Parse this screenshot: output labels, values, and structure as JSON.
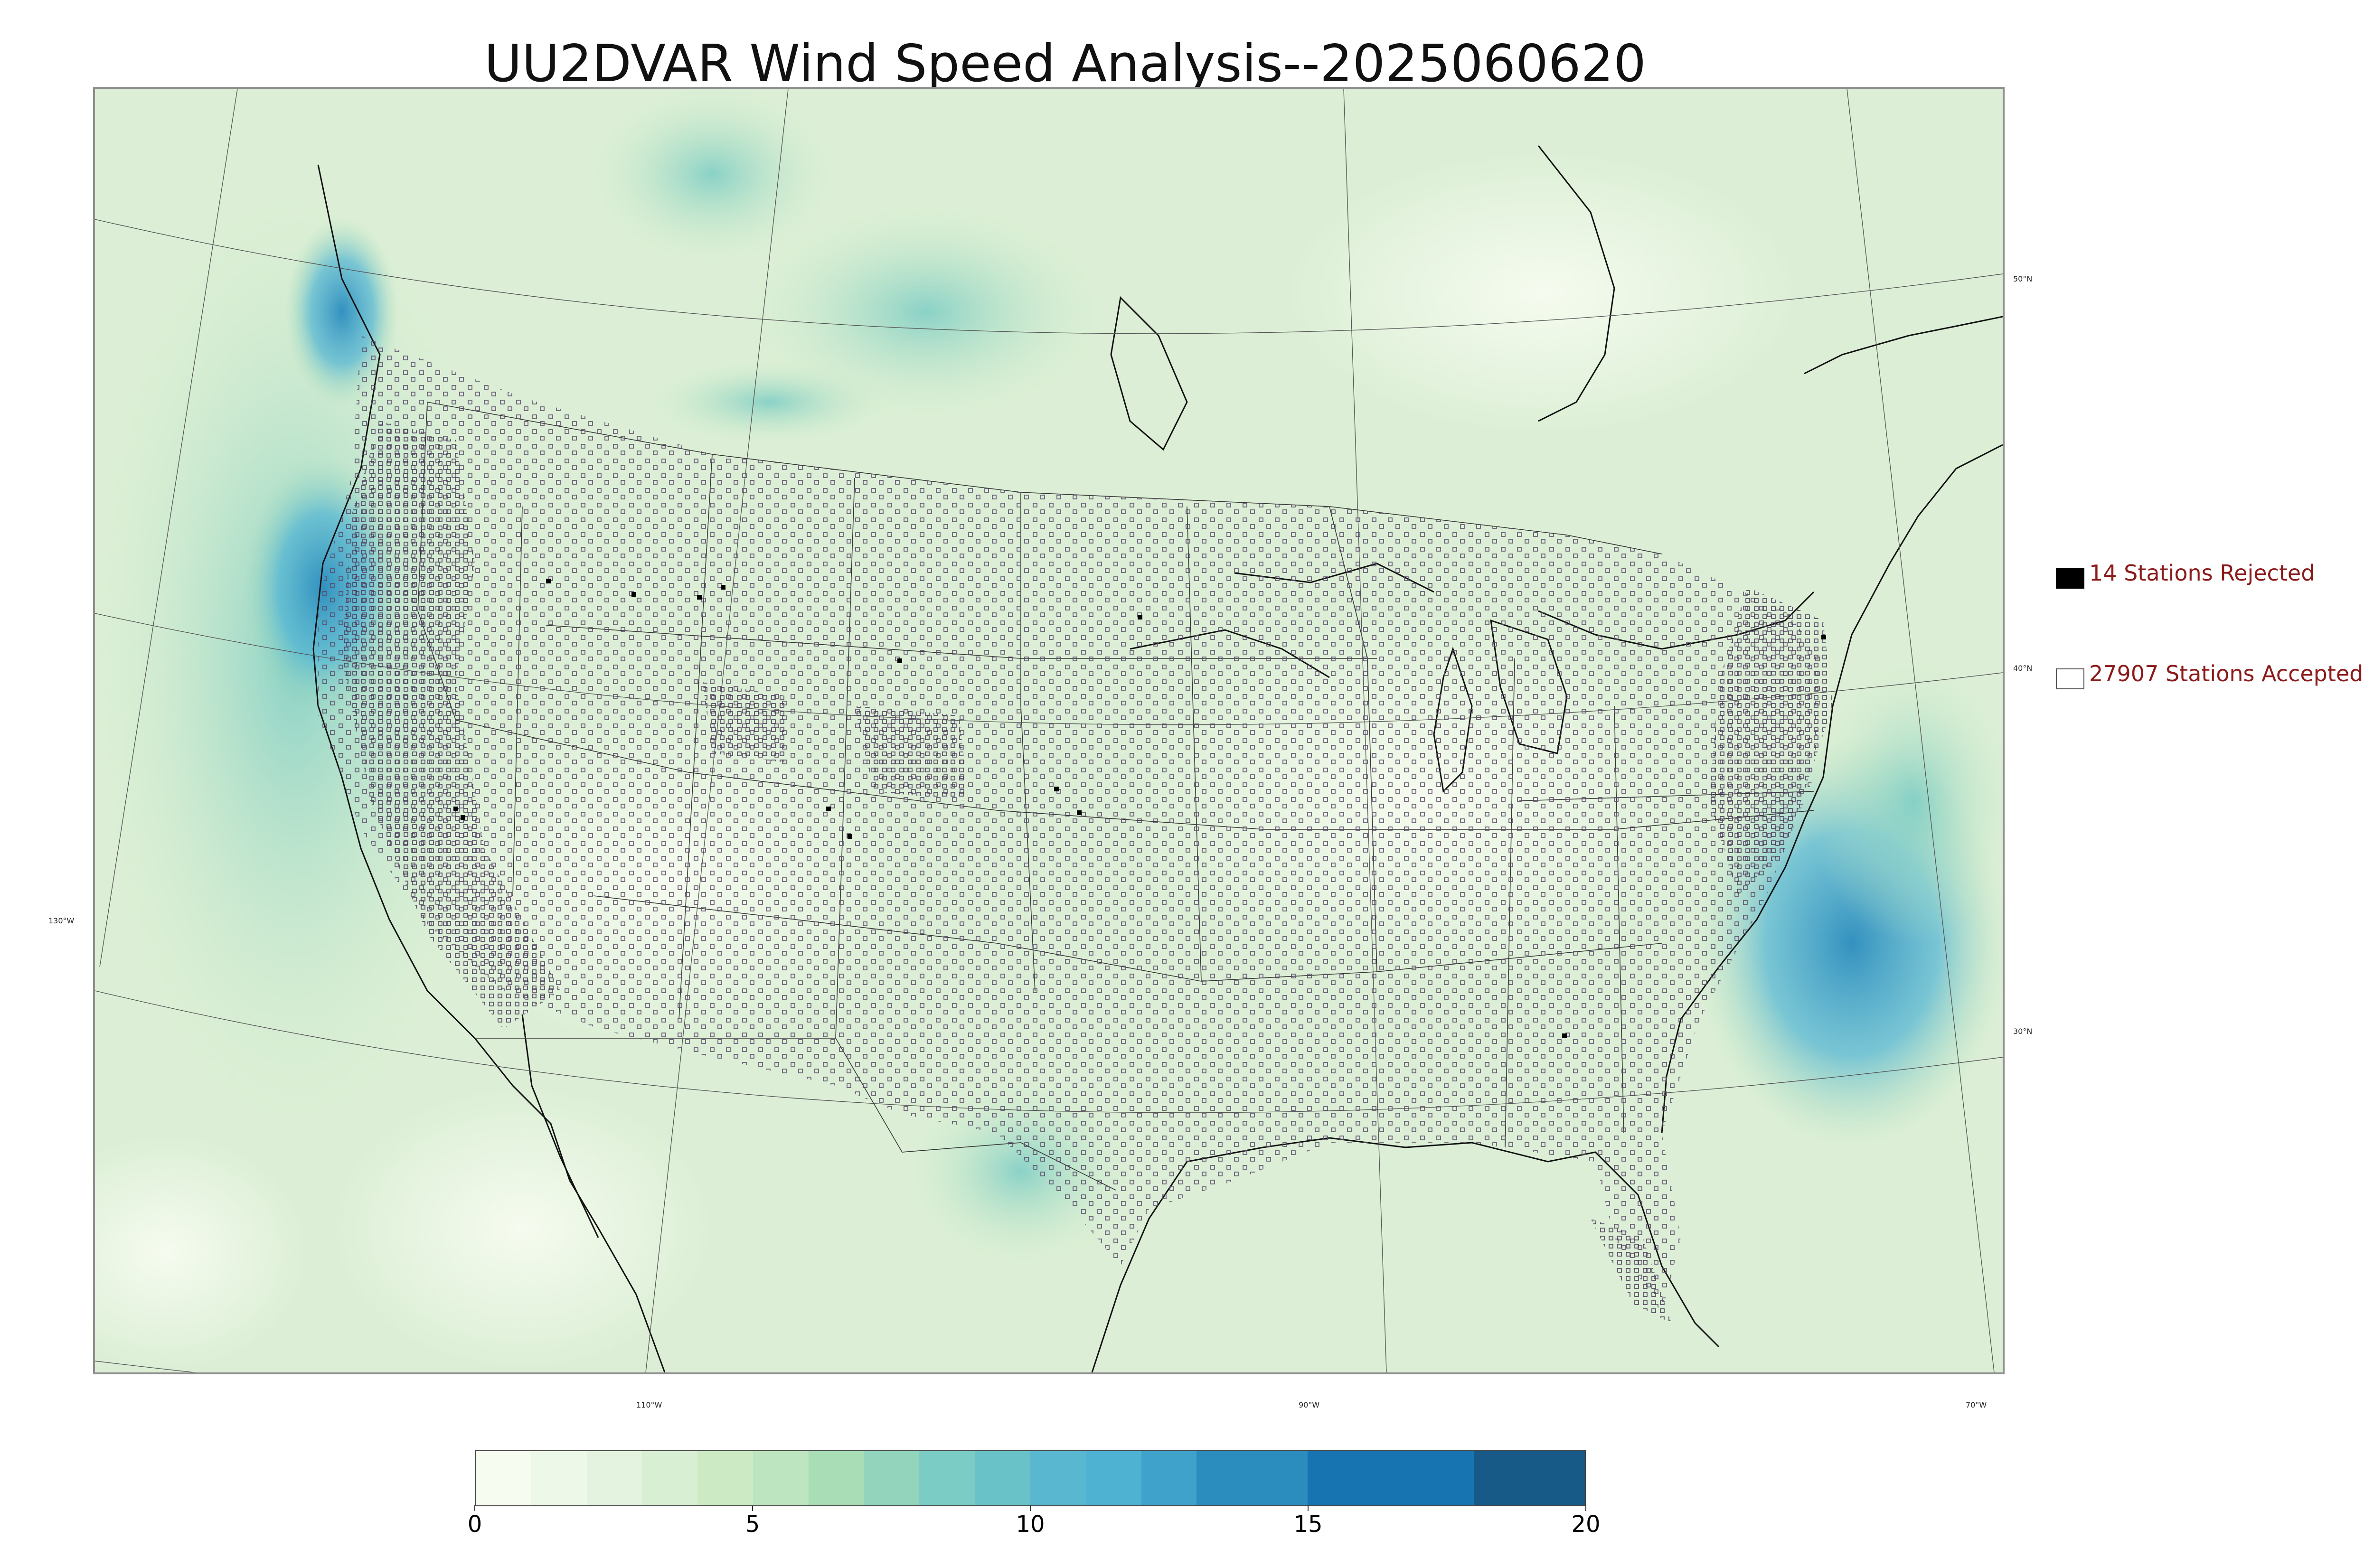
{
  "title": "UU2DVAR Wind Speed Analysis--2025060620",
  "map": {
    "projection": "lambert-conformal",
    "graticule_color": "#555555",
    "coastline_color": "#111111",
    "lat_labels": [
      {
        "text": "50°N",
        "lat": 50
      },
      {
        "text": "40°N",
        "lat": 40
      },
      {
        "text": "30°N",
        "lat": 30
      }
    ],
    "lon_labels": [
      {
        "text": "130°W",
        "lon": -130
      },
      {
        "text": "110°W",
        "lon": -110
      },
      {
        "text": "90°W",
        "lon": -90
      },
      {
        "text": "70°W",
        "lon": -70
      }
    ]
  },
  "legend": {
    "rejected": {
      "label": "14 Stations Rejected",
      "count": 14,
      "marker": "filled-black-square"
    },
    "accepted": {
      "label": "27907 Stations Accepted",
      "count": 27907,
      "marker": "hollow-square"
    },
    "text_color": "#8b1a1a"
  },
  "colorbar": {
    "min": 0,
    "max": 20,
    "ticks": [
      "0",
      "5",
      "10",
      "15",
      "20"
    ],
    "colormap": "GnBu",
    "segments": [
      {
        "from": 0,
        "to": 1,
        "color": "#f7fcf0"
      },
      {
        "from": 1,
        "to": 2,
        "color": "#eef8e8"
      },
      {
        "from": 2,
        "to": 3,
        "color": "#e3f3df"
      },
      {
        "from": 3,
        "to": 4,
        "color": "#d9efd3"
      },
      {
        "from": 4,
        "to": 5,
        "color": "#ccebc5"
      },
      {
        "from": 5,
        "to": 6,
        "color": "#bde5bf"
      },
      {
        "from": 6,
        "to": 7,
        "color": "#a8ddb5"
      },
      {
        "from": 7,
        "to": 8,
        "color": "#93d4bd"
      },
      {
        "from": 8,
        "to": 9,
        "color": "#7bccc4"
      },
      {
        "from": 9,
        "to": 10,
        "color": "#6ac2c9"
      },
      {
        "from": 10,
        "to": 11,
        "color": "#5ab7d0"
      },
      {
        "from": 11,
        "to": 12,
        "color": "#4eb3d3"
      },
      {
        "from": 12,
        "to": 13,
        "color": "#3fa2cb"
      },
      {
        "from": 13,
        "to": 15,
        "color": "#2b8cbe"
      },
      {
        "from": 15,
        "to": 18,
        "color": "#1774b1"
      },
      {
        "from": 18,
        "to": 20,
        "color": "#175987"
      }
    ]
  }
}
